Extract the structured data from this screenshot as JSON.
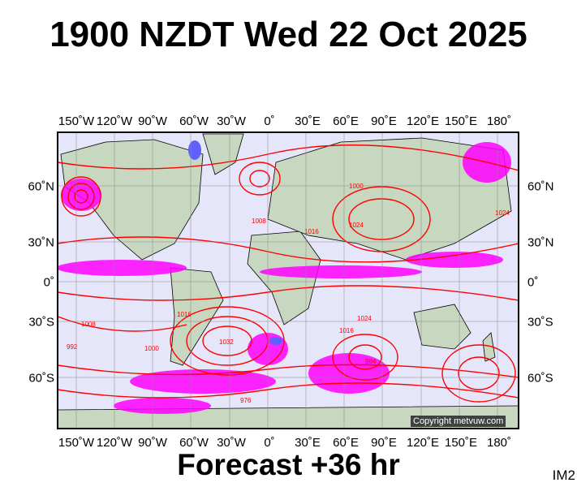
{
  "title": "1900 NZDT Wed 22 Oct 2025",
  "footer": "Forecast +36 hr",
  "image_tag": "IM2",
  "copyright": "Copyright metvuw.com",
  "longitude_labels": [
    "150˚W",
    "120˚W",
    "90˚W",
    "60˚W",
    "30˚W",
    "0˚",
    "30˚E",
    "60˚E",
    "90˚E",
    "120˚E",
    "150˚E",
    "180˚"
  ],
  "latitude_labels": [
    "60˚N",
    "30˚N",
    "0˚",
    "30˚S",
    "60˚S"
  ],
  "isobar_labels": [
    "1016",
    "1024",
    "1008",
    "992",
    "1000",
    "1032",
    "984",
    "976",
    "1016",
    "1024",
    "1008",
    "1016",
    "1024",
    "1000"
  ],
  "colors": {
    "ocean": "#e6e6fa",
    "land": "#c8d8c0",
    "isobar": "#ff0000",
    "precip": "#ff00ff",
    "precip_heavy": "#6060ff",
    "frame": "#000000"
  }
}
